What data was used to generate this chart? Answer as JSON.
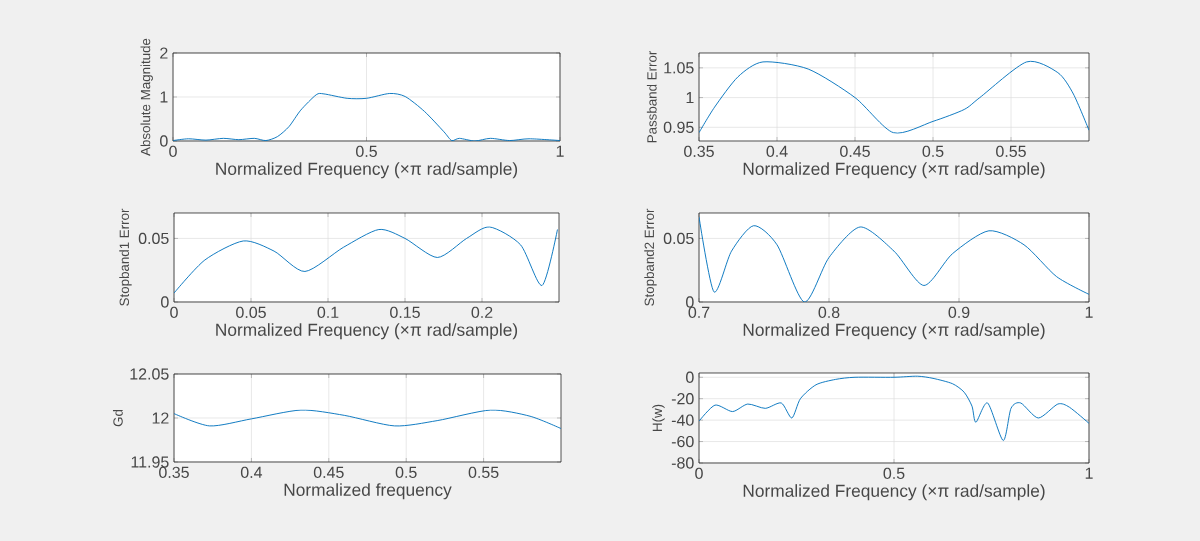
{
  "chart_data": [
    {
      "type": "line",
      "xlabel": "Normalized Frequency (×π rad/sample)",
      "ylabel": "Absolute Magnitude",
      "xlim": [
        0,
        1
      ],
      "ylim": [
        0,
        2
      ],
      "xticks": [
        0,
        0.5,
        1
      ],
      "yticks": [
        0,
        1,
        2
      ],
      "grid": true,
      "series": [
        {
          "color": "#0072bd",
          "x": [
            0,
            0.04,
            0.085,
            0.13,
            0.17,
            0.21,
            0.24,
            0.27,
            0.3,
            0.33,
            0.37,
            0.39,
            0.45,
            0.5,
            0.56,
            0.6,
            0.65,
            0.7,
            0.72,
            0.74,
            0.78,
            0.82,
            0.87,
            0.92,
            1
          ],
          "values": [
            0.01,
            0.05,
            0.02,
            0.06,
            0.03,
            0.06,
            0.01,
            0.1,
            0.33,
            0.7,
            1.05,
            1.07,
            0.97,
            0.97,
            1.08,
            1.01,
            0.67,
            0.21,
            0.01,
            0.06,
            0,
            0.06,
            0.01,
            0.05,
            0.01
          ]
        }
      ]
    },
    {
      "type": "line",
      "xlabel": "Normalized Frequency (×π rad/sample)",
      "ylabel": "Passband Error",
      "xlim": [
        0.35,
        0.6
      ],
      "ylim": [
        0.927,
        1.075
      ],
      "xticks": [
        0.35,
        0.4,
        0.45,
        0.5,
        0.55
      ],
      "yticks": [
        0.95,
        1,
        1.05
      ],
      "grid": true,
      "series": [
        {
          "color": "#0072bd",
          "x": [
            0.35,
            0.36,
            0.375,
            0.391,
            0.42,
            0.45,
            0.4746,
            0.5,
            0.52,
            0.53,
            0.56,
            0.58,
            0.59,
            0.6
          ],
          "values": [
            0.941,
            0.984,
            1.035,
            1.06,
            1.048,
            1.0,
            0.941,
            0.96,
            0.98,
            1.0,
            1.06,
            1.042,
            1.006,
            0.945
          ]
        }
      ]
    },
    {
      "type": "line",
      "xlabel": "Normalized Frequency (×π rad/sample)",
      "ylabel": "Stopband1 Error",
      "xlim": [
        0,
        0.25
      ],
      "ylim": [
        0,
        0.07
      ],
      "xticks": [
        0,
        0.05,
        0.1,
        0.15,
        0.2
      ],
      "yticks": [
        0,
        0.05
      ],
      "grid": true,
      "series": [
        {
          "color": "#0072bd",
          "x": [
            0,
            0.02,
            0.045,
            0.065,
            0.085,
            0.11,
            0.133,
            0.15,
            0.171,
            0.19,
            0.205,
            0.225,
            0.239,
            0.249
          ],
          "values": [
            0.007,
            0.033,
            0.048,
            0.04,
            0.024,
            0.043,
            0.057,
            0.05,
            0.035,
            0.05,
            0.059,
            0.045,
            0.013,
            0.057
          ]
        }
      ]
    },
    {
      "type": "line",
      "xlabel": "Normalized Frequency (×π rad/sample)",
      "ylabel": "Stopband2 Error",
      "xlim": [
        0.7,
        1
      ],
      "ylim": [
        0,
        0.07
      ],
      "xticks": [
        0.7,
        0.8,
        0.9,
        1
      ],
      "yticks": [
        0,
        0.05
      ],
      "grid": true,
      "series": [
        {
          "color": "#0072bd",
          "x": [
            0.7,
            0.7115,
            0.725,
            0.742,
            0.76,
            0.781,
            0.8,
            0.824,
            0.85,
            0.873,
            0.895,
            0.923,
            0.95,
            0.975,
            1
          ],
          "values": [
            0.067,
            0.008,
            0.04,
            0.06,
            0.045,
            0,
            0.035,
            0.059,
            0.04,
            0.013,
            0.038,
            0.056,
            0.045,
            0.02,
            0.006
          ]
        }
      ]
    },
    {
      "type": "line",
      "xlabel": "Normalized frequency",
      "ylabel": "Gd",
      "xlim": [
        0.35,
        0.6
      ],
      "ylim": [
        11.95,
        12.05
      ],
      "xticks": [
        0.35,
        0.4,
        0.45,
        0.5,
        0.55
      ],
      "yticks": [
        11.95,
        12,
        12.05
      ],
      "grid": true,
      "series": [
        {
          "color": "#0072bd",
          "x": [
            0.35,
            0.373,
            0.4,
            0.432,
            0.46,
            0.4925,
            0.52,
            0.5545,
            0.58,
            0.6
          ],
          "values": [
            12.005,
            11.991,
            11.999,
            12.009,
            12.003,
            11.991,
            11.997,
            12.009,
            12.002,
            11.988
          ]
        }
      ]
    },
    {
      "type": "line",
      "xlabel": "Normalized Frequency (×π rad/sample)",
      "ylabel": "H(w)",
      "xlim": [
        0,
        1
      ],
      "ylim": [
        -80,
        4
      ],
      "xticks": [
        0,
        0.5,
        1
      ],
      "yticks": [
        -80,
        -60,
        -40,
        -20,
        0
      ],
      "grid": true,
      "series": [
        {
          "color": "#0072bd",
          "x": [
            0,
            0.041,
            0.086,
            0.125,
            0.17,
            0.211,
            0.238,
            0.26,
            0.3,
            0.35,
            0.4,
            0.5,
            0.56,
            0.6,
            0.65,
            0.68,
            0.7,
            0.71,
            0.74,
            0.78,
            0.8,
            0.825,
            0.87,
            0.92,
            0.95,
            1
          ],
          "values": [
            -41,
            -26,
            -32,
            -25,
            -29,
            -24,
            -38,
            -20,
            -7,
            -2,
            0,
            0,
            1,
            -1,
            -6,
            -14,
            -27,
            -42,
            -24,
            -59,
            -29,
            -24,
            -38,
            -25,
            -28,
            -43
          ]
        }
      ]
    }
  ]
}
